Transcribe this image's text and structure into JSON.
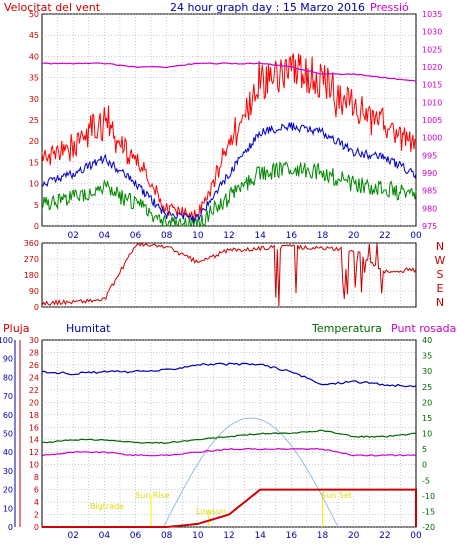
{
  "panels": {
    "top": {
      "left_label": "Velocitat del vent",
      "title": "24 hour graph day : 15 Marzo 2016",
      "right_label": "Pressió",
      "left_ticks": [
        0,
        5,
        10,
        15,
        20,
        25,
        30,
        35,
        40,
        45,
        50
      ],
      "right_ticks": [
        975,
        980,
        985,
        990,
        995,
        1000,
        1005,
        1010,
        1015,
        1020,
        1025,
        1030,
        1035
      ]
    },
    "middle": {
      "left_ticks": [
        0,
        90,
        180,
        270,
        360
      ],
      "compass": [
        "N",
        "W",
        "S",
        "E",
        "N"
      ]
    },
    "bottom": {
      "labels": {
        "rain": "Pluja",
        "humidity": "Humitat",
        "temperature": "Temperatura",
        "dewpoint": "Punt rosada"
      },
      "humidity_ticks": [
        0,
        10,
        20,
        30,
        40,
        50,
        60,
        70,
        80,
        90,
        100
      ],
      "rain_ticks": [
        0,
        2,
        4,
        6,
        8,
        10,
        12,
        14,
        16,
        18,
        20,
        22,
        24,
        26,
        28,
        30
      ],
      "temp_ticks": [
        -20,
        -15,
        -10,
        -5,
        0,
        5,
        10,
        15,
        20,
        25,
        30,
        35,
        40
      ],
      "annotations": {
        "dawn": "Bigtrade",
        "sunrise": "Sun Rise",
        "sunset": "Sun Set",
        "lowsun": "Lowsun"
      }
    },
    "x_ticks": [
      "02",
      "04",
      "06",
      "08",
      "10",
      "12",
      "14",
      "16",
      "18",
      "20",
      "22",
      "00"
    ]
  },
  "colors": {
    "gust": "#ff0000",
    "wind_avg": "#0000cc",
    "wind_low": "#008800",
    "pressure": "#cc00cc",
    "direction": "#cc0000",
    "humidity": "#0000aa",
    "temperature": "#006600",
    "dewpoint": "#cc00cc",
    "rain": "#cc0000",
    "sun": "#99bbee",
    "annotation": "#ffee00"
  },
  "chart_data": [
    {
      "type": "line",
      "title": "24 hour graph day : 15 Marzo 2016",
      "x": [
        "00",
        "02",
        "04",
        "06",
        "08",
        "10",
        "12",
        "14",
        "16",
        "18",
        "20",
        "22",
        "00"
      ],
      "series": [
        {
          "name": "Velocitat del vent",
          "values": [
            12,
            15,
            20,
            12,
            2,
            1,
            15,
            28,
            30,
            28,
            22,
            20,
            15
          ]
        },
        {
          "name": "Pressió",
          "values": [
            1021,
            1021,
            1021,
            1020,
            1020,
            1021,
            1021,
            1021,
            1020,
            1018,
            1018,
            1017,
            1016
          ]
        }
      ],
      "ylim": [
        0,
        50
      ],
      "y2lim": [
        975,
        1035
      ]
    },
    {
      "type": "scatter",
      "x": [
        "00",
        "02",
        "04",
        "06",
        "08",
        "10",
        "12",
        "14",
        "16",
        "18",
        "20",
        "22",
        "00"
      ],
      "series": [
        {
          "name": "Direction",
          "values": [
            20,
            30,
            40,
            350,
            340,
            250,
            320,
            330,
            340,
            330,
            320,
            200,
            210
          ]
        }
      ],
      "ylim": [
        0,
        360
      ]
    },
    {
      "type": "line",
      "x": [
        "00",
        "02",
        "04",
        "06",
        "08",
        "10",
        "12",
        "14",
        "16",
        "18",
        "20",
        "22",
        "00"
      ],
      "series": [
        {
          "name": "Humitat",
          "values": [
            83,
            82,
            83,
            83,
            84,
            87,
            87,
            87,
            83,
            76,
            78,
            76,
            75
          ]
        },
        {
          "name": "Temperatura",
          "values": [
            7,
            8,
            8,
            7,
            7,
            8,
            9,
            10,
            10,
            11,
            9,
            9,
            10
          ]
        },
        {
          "name": "Punt rosada",
          "values": [
            3,
            4,
            4,
            3,
            3,
            4,
            5,
            5,
            5,
            5,
            3,
            3,
            3
          ]
        },
        {
          "name": "Pluja",
          "values": [
            0,
            0,
            0,
            0,
            0,
            0.5,
            2,
            6,
            6,
            6,
            6,
            6,
            6
          ]
        }
      ],
      "ylim": [
        0,
        100
      ]
    }
  ]
}
